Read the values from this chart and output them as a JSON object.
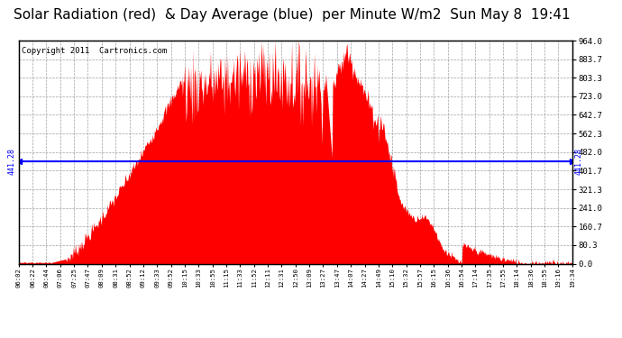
{
  "title": "Solar Radiation (red)  & Day Average (blue)  per Minute W/m2  Sun May 8  19:41",
  "copyright": "Copyright 2011  Cartronics.com",
  "day_average": 441.28,
  "y_max": 964.0,
  "y_min": 0.0,
  "yticks_right": [
    0.0,
    80.3,
    160.7,
    241.0,
    321.3,
    401.7,
    482.0,
    562.3,
    642.7,
    723.0,
    803.3,
    883.7,
    964.0
  ],
  "background_color": "#ffffff",
  "bar_color": "#ff0000",
  "avg_line_color": "#0000ff",
  "grid_color": "#888888",
  "title_color": "#000000",
  "title_fontsize": 11,
  "copyright_fontsize": 6.5,
  "x_labels": [
    "06:02",
    "06:22",
    "06:44",
    "07:06",
    "07:25",
    "07:47",
    "08:09",
    "08:31",
    "08:52",
    "09:12",
    "09:33",
    "09:52",
    "10:15",
    "10:33",
    "10:55",
    "11:15",
    "11:33",
    "11:52",
    "12:11",
    "12:31",
    "12:50",
    "13:09",
    "13:27",
    "13:47",
    "14:07",
    "14:27",
    "14:49",
    "15:10",
    "15:32",
    "15:57",
    "16:15",
    "16:36",
    "16:54",
    "17:14",
    "17:35",
    "17:55",
    "18:14",
    "18:36",
    "18:55",
    "19:16",
    "19:34"
  ]
}
